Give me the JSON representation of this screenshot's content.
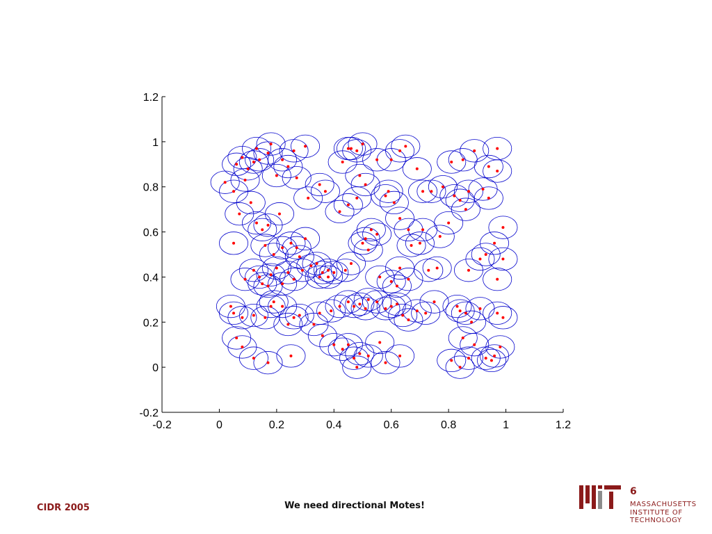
{
  "chart_data": {
    "type": "scatter",
    "title": "",
    "xlabel": "",
    "ylabel": "",
    "xlim": [
      -0.2,
      1.2
    ],
    "ylim": [
      -0.2,
      1.2
    ],
    "xticks": [
      "-0.2",
      "0",
      "0.2",
      "0.4",
      "0.6",
      "0.8",
      "1",
      "1.2"
    ],
    "yticks": [
      "-0.2",
      "0",
      "0.2",
      "0.4",
      "0.6",
      "0.8",
      "1",
      "1.2"
    ],
    "grid": false,
    "marker_color": "#ff0000",
    "range_circle_color": "#0000cc",
    "range_circle_radius": 0.05,
    "points": [
      [
        0.02,
        0.82
      ],
      [
        0.05,
        0.78
      ],
      [
        0.06,
        0.9
      ],
      [
        0.08,
        0.93
      ],
      [
        0.09,
        0.83
      ],
      [
        0.1,
        0.88
      ],
      [
        0.12,
        0.91
      ],
      [
        0.13,
        0.97
      ],
      [
        0.14,
        0.92
      ],
      [
        0.17,
        0.95
      ],
      [
        0.18,
        0.99
      ],
      [
        0.2,
        0.85
      ],
      [
        0.22,
        0.92
      ],
      [
        0.24,
        0.89
      ],
      [
        0.26,
        0.96
      ],
      [
        0.27,
        0.84
      ],
      [
        0.3,
        0.98
      ],
      [
        0.31,
        0.75
      ],
      [
        0.35,
        0.81
      ],
      [
        0.37,
        0.78
      ],
      [
        0.43,
        0.91
      ],
      [
        0.45,
        0.97
      ],
      [
        0.46,
        0.97
      ],
      [
        0.48,
        0.96
      ],
      [
        0.5,
        0.99
      ],
      [
        0.55,
        0.92
      ],
      [
        0.6,
        0.92
      ],
      [
        0.63,
        0.96
      ],
      [
        0.65,
        0.98
      ],
      [
        0.69,
        0.88
      ],
      [
        0.71,
        0.78
      ],
      [
        0.74,
        0.78
      ],
      [
        0.78,
        0.8
      ],
      [
        0.81,
        0.91
      ],
      [
        0.85,
        0.92
      ],
      [
        0.89,
        0.96
      ],
      [
        0.94,
        0.89
      ],
      [
        0.97,
        0.97
      ],
      [
        0.97,
        0.87
      ],
      [
        0.92,
        0.79
      ],
      [
        0.94,
        0.75
      ],
      [
        0.84,
        0.74
      ],
      [
        0.86,
        0.7
      ],
      [
        0.87,
        0.78
      ],
      [
        0.82,
        0.76
      ],
      [
        0.8,
        0.64
      ],
      [
        0.77,
        0.58
      ],
      [
        0.07,
        0.68
      ],
      [
        0.11,
        0.73
      ],
      [
        0.13,
        0.64
      ],
      [
        0.15,
        0.61
      ],
      [
        0.17,
        0.63
      ],
      [
        0.21,
        0.68
      ],
      [
        0.05,
        0.55
      ],
      [
        0.16,
        0.54
      ],
      [
        0.19,
        0.5
      ],
      [
        0.22,
        0.53
      ],
      [
        0.25,
        0.55
      ],
      [
        0.27,
        0.53
      ],
      [
        0.28,
        0.49
      ],
      [
        0.3,
        0.57
      ],
      [
        0.34,
        0.46
      ],
      [
        0.38,
        0.43
      ],
      [
        0.42,
        0.69
      ],
      [
        0.45,
        0.72
      ],
      [
        0.48,
        0.75
      ],
      [
        0.49,
        0.85
      ],
      [
        0.51,
        0.81
      ],
      [
        0.53,
        0.61
      ],
      [
        0.5,
        0.55
      ],
      [
        0.51,
        0.57
      ],
      [
        0.55,
        0.59
      ],
      [
        0.58,
        0.76
      ],
      [
        0.59,
        0.78
      ],
      [
        0.61,
        0.73
      ],
      [
        0.63,
        0.66
      ],
      [
        0.66,
        0.61
      ],
      [
        0.67,
        0.54
      ],
      [
        0.7,
        0.55
      ],
      [
        0.71,
        0.61
      ],
      [
        0.09,
        0.39
      ],
      [
        0.12,
        0.43
      ],
      [
        0.14,
        0.4
      ],
      [
        0.15,
        0.37
      ],
      [
        0.17,
        0.36
      ],
      [
        0.18,
        0.41
      ],
      [
        0.2,
        0.44
      ],
      [
        0.22,
        0.37
      ],
      [
        0.24,
        0.42
      ],
      [
        0.26,
        0.39
      ],
      [
        0.29,
        0.43
      ],
      [
        0.32,
        0.45
      ],
      [
        0.35,
        0.4
      ],
      [
        0.36,
        0.42
      ],
      [
        0.38,
        0.4
      ],
      [
        0.4,
        0.42
      ],
      [
        0.44,
        0.43
      ],
      [
        0.46,
        0.46
      ],
      [
        0.52,
        0.52
      ],
      [
        0.56,
        0.4
      ],
      [
        0.6,
        0.38
      ],
      [
        0.62,
        0.36
      ],
      [
        0.63,
        0.44
      ],
      [
        0.66,
        0.39
      ],
      [
        0.73,
        0.43
      ],
      [
        0.76,
        0.44
      ],
      [
        0.87,
        0.43
      ],
      [
        0.91,
        0.48
      ],
      [
        0.93,
        0.5
      ],
      [
        0.96,
        0.55
      ],
      [
        0.99,
        0.48
      ],
      [
        0.97,
        0.39
      ],
      [
        0.99,
        0.62
      ],
      [
        0.04,
        0.27
      ],
      [
        0.05,
        0.24
      ],
      [
        0.08,
        0.22
      ],
      [
        0.12,
        0.23
      ],
      [
        0.16,
        0.22
      ],
      [
        0.18,
        0.27
      ],
      [
        0.19,
        0.29
      ],
      [
        0.22,
        0.27
      ],
      [
        0.24,
        0.19
      ],
      [
        0.26,
        0.22
      ],
      [
        0.28,
        0.23
      ],
      [
        0.33,
        0.19
      ],
      [
        0.35,
        0.24
      ],
      [
        0.39,
        0.25
      ],
      [
        0.42,
        0.27
      ],
      [
        0.45,
        0.29
      ],
      [
        0.47,
        0.27
      ],
      [
        0.49,
        0.28
      ],
      [
        0.51,
        0.26
      ],
      [
        0.52,
        0.3
      ],
      [
        0.55,
        0.29
      ],
      [
        0.58,
        0.26
      ],
      [
        0.6,
        0.27
      ],
      [
        0.62,
        0.28
      ],
      [
        0.64,
        0.23
      ],
      [
        0.66,
        0.21
      ],
      [
        0.69,
        0.25
      ],
      [
        0.72,
        0.24
      ],
      [
        0.75,
        0.29
      ],
      [
        0.83,
        0.27
      ],
      [
        0.84,
        0.25
      ],
      [
        0.86,
        0.24
      ],
      [
        0.88,
        0.2
      ],
      [
        0.91,
        0.26
      ],
      [
        0.97,
        0.24
      ],
      [
        0.99,
        0.22
      ],
      [
        0.06,
        0.13
      ],
      [
        0.08,
        0.09
      ],
      [
        0.12,
        0.04
      ],
      [
        0.17,
        0.02
      ],
      [
        0.25,
        0.05
      ],
      [
        0.36,
        0.14
      ],
      [
        0.4,
        0.1
      ],
      [
        0.43,
        0.08
      ],
      [
        0.45,
        0.1
      ],
      [
        0.47,
        0.04
      ],
      [
        0.49,
        0.06
      ],
      [
        0.52,
        0.05
      ],
      [
        0.56,
        0.11
      ],
      [
        0.58,
        0.02
      ],
      [
        0.63,
        0.05
      ],
      [
        0.81,
        0.03
      ],
      [
        0.85,
        0.13
      ],
      [
        0.87,
        0.04
      ],
      [
        0.89,
        0.1
      ],
      [
        0.93,
        0.04
      ],
      [
        0.95,
        0.03
      ],
      [
        0.96,
        0.05
      ],
      [
        0.98,
        0.09
      ],
      [
        0.84,
        0.0
      ],
      [
        0.48,
        0.0
      ]
    ]
  },
  "footer": {
    "conference": "CIDR 2005",
    "caption": "We need directional Motes!",
    "page_number": "6",
    "institution": [
      "MASSACHUSETTS",
      "INSTITUTE OF",
      "TECHNOLOGY"
    ]
  },
  "colors": {
    "brand": "#8b1a1a",
    "logo_gray": "#8c8c8c"
  }
}
